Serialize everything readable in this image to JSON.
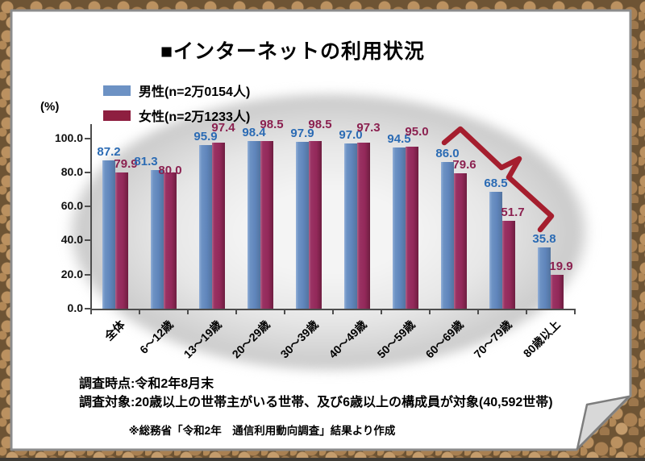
{
  "title": "■インターネットの利用状況",
  "unit_label": "(%)",
  "legend": {
    "items": [
      {
        "key": "male",
        "label": "男性(n=2万0154人)",
        "color": "#6d92c4"
      },
      {
        "key": "female",
        "label": "女性(n=2万1233人)",
        "color": "#8e1f40"
      }
    ]
  },
  "notes": {
    "line1": "調査時点:令和2年8月末",
    "line2": "調査対象:20歳以上の世帯主がいる世帯、及び6歳以上の構成員が対象(40,592世帯)",
    "source": "※総務省「令和2年　通信利用動向調査」結果より作成"
  },
  "chart_data": {
    "type": "bar",
    "title": "インターネットの利用状況",
    "categories": [
      "全体",
      "6〜12歳",
      "13〜19歳",
      "20〜29歳",
      "30〜39歳",
      "40〜49歳",
      "50〜59歳",
      "60〜69歳",
      "70〜79歳",
      "80歳以上"
    ],
    "series": [
      {
        "key": "male",
        "name": "男性(n=2万0154人)",
        "color": "#5f85bb",
        "label_color": "#2b6bb4",
        "values": [
          87.2,
          81.3,
          95.9,
          98.4,
          97.9,
          97.0,
          94.5,
          86.0,
          68.5,
          35.8
        ]
      },
      {
        "key": "female",
        "name": "女性(n=2万1233人)",
        "color": "#93295a",
        "label_color": "#8b2150",
        "values": [
          79.9,
          80.0,
          97.4,
          98.5,
          98.5,
          97.3,
          95.0,
          79.6,
          51.7,
          19.9
        ]
      }
    ],
    "ylabel": "(%)",
    "ylim": [
      0,
      100
    ],
    "yticks": [
      0,
      20,
      40,
      60,
      80,
      100
    ],
    "grid": false,
    "legend_position": "top-left",
    "annotation": {
      "type": "bracket",
      "color": "#a51e2e",
      "meaning": "decline of usage in age groups 60 and over"
    }
  }
}
